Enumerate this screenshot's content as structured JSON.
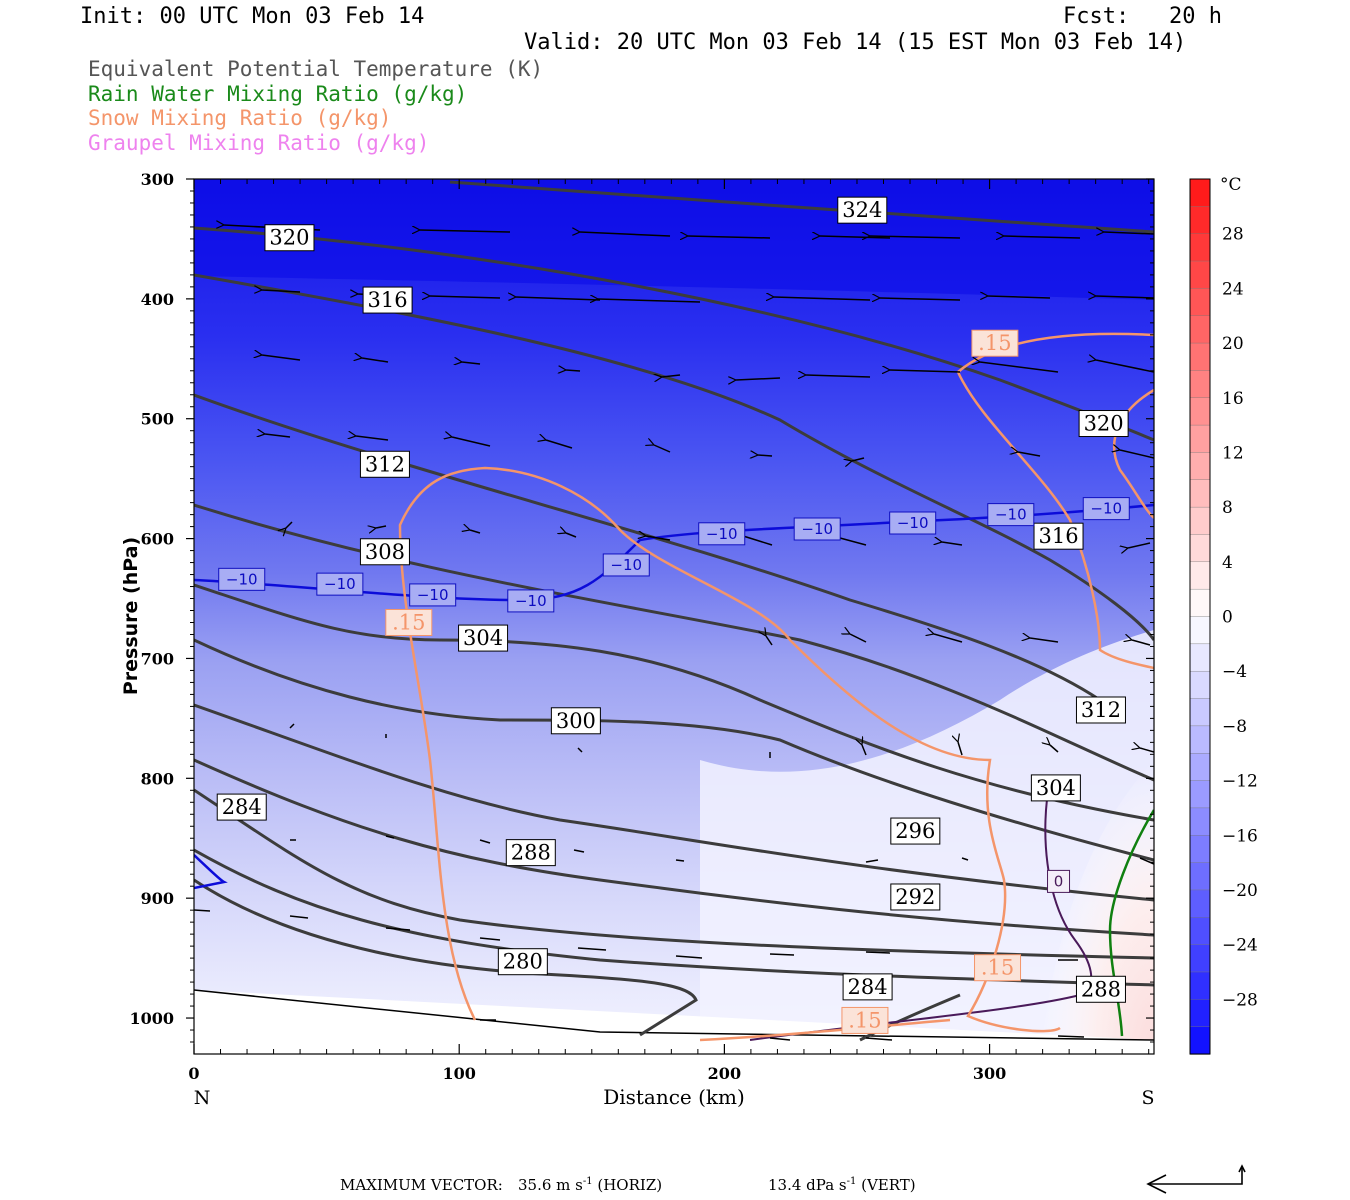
{
  "header": {
    "init": "Init: 00 UTC Mon 03 Feb 14",
    "fcst": "Fcst:   20 h",
    "valid": "Valid: 20 UTC Mon 03 Feb 14 (15 EST Mon 03 Feb 14)"
  },
  "legend": [
    {
      "label": "Equivalent Potential Temperature (K)",
      "color": "#555555"
    },
    {
      "label": "Rain Water Mixing Ratio (g/kg)",
      "color": "#1a8a1a"
    },
    {
      "label": "Snow Mixing Ratio (g/kg)",
      "color": "#f4956a"
    },
    {
      "label": "Graupel Mixing Ratio (g/kg)",
      "color": "#ee82ee"
    }
  ],
  "chart_data": {
    "type": "heatmap",
    "xlabel": "Distance (km)",
    "ylabel": "Pressure (hPa)",
    "x_range": [
      0,
      362
    ],
    "y_range": [
      300,
      1030
    ],
    "x_ticks": [
      "0",
      "100",
      "200",
      "300"
    ],
    "y_ticks": [
      "300",
      "400",
      "500",
      "600",
      "700",
      "800",
      "900",
      "1000"
    ],
    "x_end_labels": {
      "left": "N",
      "right": "S"
    },
    "colorbar": {
      "unit": "°C",
      "ticks": [
        "28",
        "24",
        "20",
        "16",
        "12",
        "8",
        "4",
        "0",
        "−4",
        "−8",
        "−12",
        "−16",
        "−20",
        "−24",
        "−28"
      ],
      "range": [
        -32,
        32
      ]
    },
    "theta_e_labels": [
      {
        "text": "324",
        "x": 252,
        "p": 326
      },
      {
        "text": "320",
        "x": 36,
        "p": 349
      },
      {
        "text": "316",
        "x": 73,
        "p": 401
      },
      {
        "text": "312",
        "x": 72,
        "p": 538
      },
      {
        "text": "308",
        "x": 72,
        "p": 611
      },
      {
        "text": "304",
        "x": 109,
        "p": 683
      },
      {
        "text": "300",
        "x": 144,
        "p": 752
      },
      {
        "text": "296",
        "x": 272,
        "p": 844
      },
      {
        "text": "292",
        "x": 272,
        "p": 899
      },
      {
        "text": "288",
        "x": 127,
        "p": 862
      },
      {
        "text": "284",
        "x": 18,
        "p": 824
      },
      {
        "text": "280",
        "x": 124,
        "p": 953
      },
      {
        "text": "284",
        "x": 254,
        "p": 974
      },
      {
        "text": "288",
        "x": 342,
        "p": 976
      },
      {
        "text": "304",
        "x": 325,
        "p": 808
      },
      {
        "text": "312",
        "x": 342,
        "p": 743
      },
      {
        "text": "316",
        "x": 326,
        "p": 598
      },
      {
        "text": "320",
        "x": 343,
        "p": 504
      }
    ],
    "isotherm_labels": [
      {
        "text": "−10",
        "x": 18,
        "p": 634
      },
      {
        "text": "−10",
        "x": 55,
        "p": 638
      },
      {
        "text": "−10",
        "x": 90,
        "p": 647
      },
      {
        "text": "−10",
        "x": 127,
        "p": 652
      },
      {
        "text": "−10",
        "x": 163,
        "p": 622
      },
      {
        "text": "−10",
        "x": 199,
        "p": 596
      },
      {
        "text": "−10",
        "x": 235,
        "p": 592
      },
      {
        "text": "−10",
        "x": 271,
        "p": 587
      },
      {
        "text": "−10",
        "x": 308,
        "p": 580
      },
      {
        "text": "−10",
        "x": 344,
        "p": 575
      }
    ],
    "freezing_label": {
      "text": "0",
      "x": 326,
      "p": 886
    },
    "snow_labels": [
      {
        "text": ".15",
        "x": 302,
        "p": 437
      },
      {
        "text": ".15",
        "x": 81,
        "p": 670
      },
      {
        "text": ".15",
        "x": 303,
        "p": 958
      },
      {
        "text": ".15",
        "x": 253,
        "p": 1002
      }
    ]
  },
  "footer": {
    "max_vector_label": "MAXIMUM VECTOR:",
    "horiz_value": "35.6 m s",
    "horiz_sup": "-1",
    "horiz_unit": " (HORIZ)",
    "vert_value": "13.4 dPa s",
    "vert_sup": "-1",
    "vert_unit": " (VERT)"
  }
}
